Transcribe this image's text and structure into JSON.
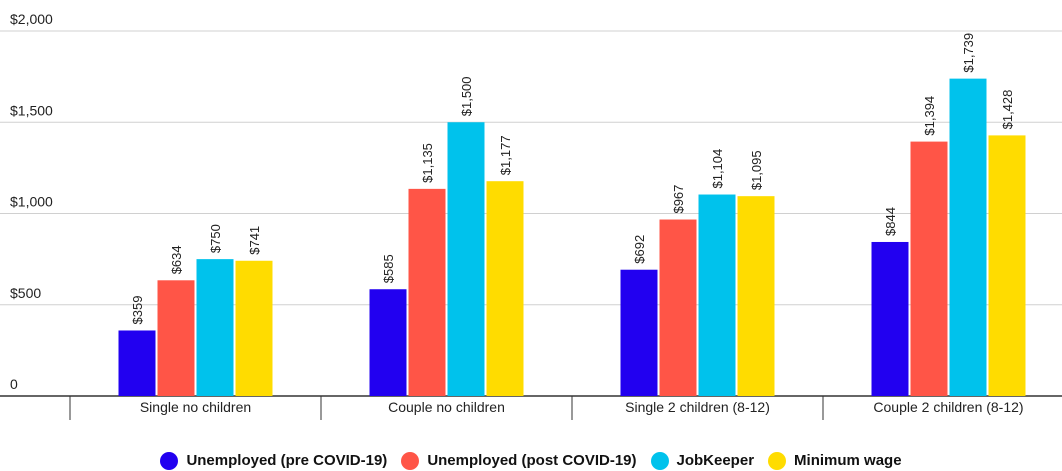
{
  "chart_data": {
    "type": "bar",
    "title": "",
    "xlabel": "",
    "ylabel": "",
    "ylim": [
      0,
      2000
    ],
    "y_ticks": [
      0,
      500,
      1000,
      1500,
      2000
    ],
    "y_tick_labels": [
      "0",
      "$500",
      "$1,000",
      "$1,500",
      "$2,000"
    ],
    "grid": true,
    "legend_position": "bottom",
    "categories": [
      "Single no children",
      "Couple no children",
      "Single 2 children (8-12)",
      "Couple 2 children (8-12)"
    ],
    "series": [
      {
        "name": "Unemployed (pre COVID-19)",
        "color": "#2200f0",
        "values": [
          359,
          585,
          692,
          844
        ],
        "labels": [
          "$359",
          "$585",
          "$692",
          "$844"
        ]
      },
      {
        "name": "Unemployed (post COVID-19)",
        "color": "#ff5547",
        "values": [
          634,
          1135,
          967,
          1394
        ],
        "labels": [
          "$634",
          "$1,135",
          "$967",
          "$1,394"
        ]
      },
      {
        "name": "JobKeeper",
        "color": "#00c2ec",
        "values": [
          750,
          1500,
          1104,
          1739
        ],
        "labels": [
          "$750",
          "$1,500",
          "$1,104",
          "$1,739"
        ]
      },
      {
        "name": "Minimum wage",
        "color": "#ffdc00",
        "values": [
          741,
          1177,
          1095,
          1428
        ],
        "labels": [
          "$741",
          "$1,177",
          "$1,095",
          "$1,428"
        ]
      }
    ]
  }
}
